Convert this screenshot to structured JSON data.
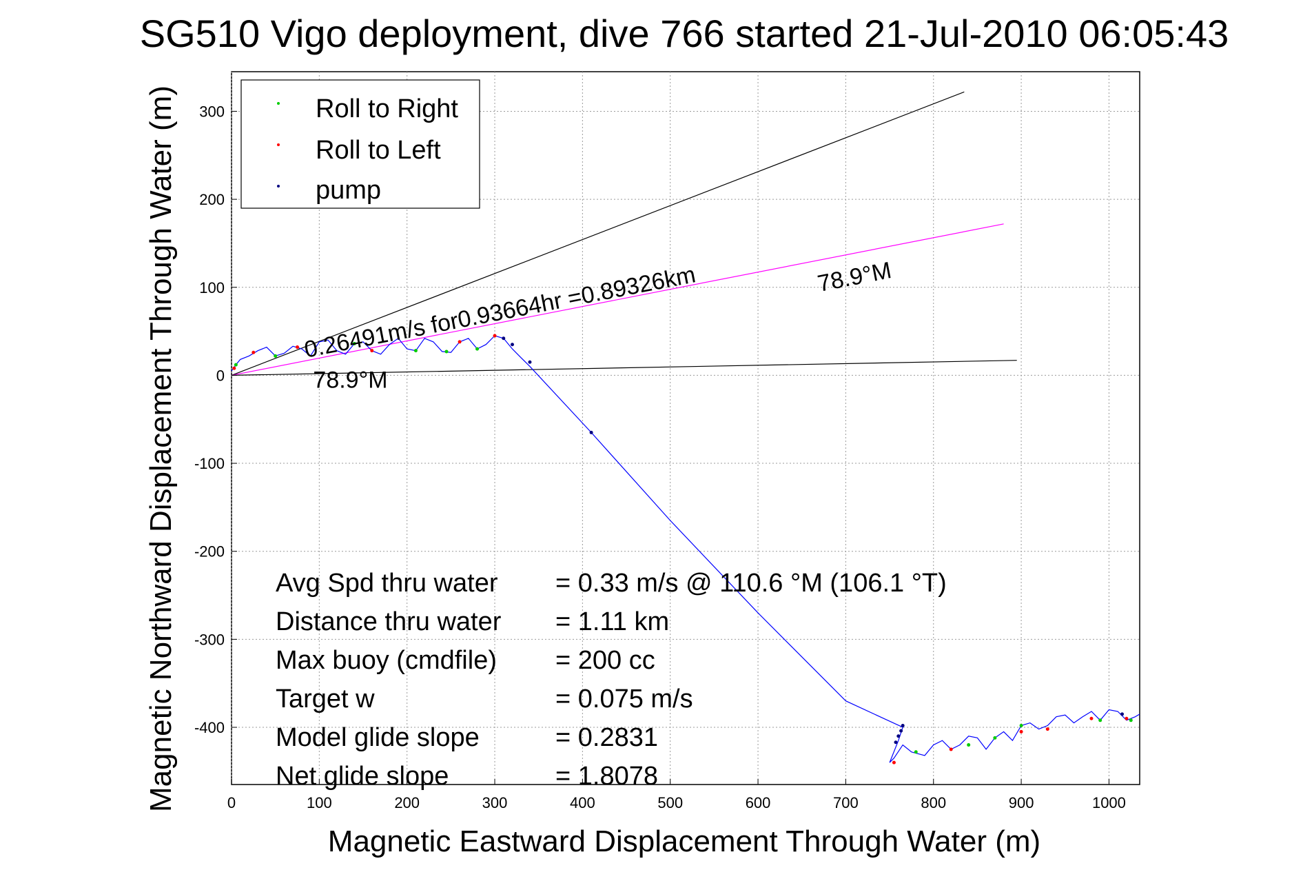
{
  "chart_data": {
    "type": "scatter",
    "title": "SG510 Vigo deployment, dive 766 started 21-Jul-2010 06:05:43",
    "xlabel": "Magnetic Eastward Displacement Through Water (m)",
    "ylabel": "Magnetic Northward Displacement Through Water (m)",
    "xlim": [
      0,
      1035
    ],
    "ylim": [
      -465,
      345
    ],
    "xticks": [
      0,
      100,
      200,
      300,
      400,
      500,
      600,
      700,
      800,
      900,
      1000
    ],
    "yticks": [
      -400,
      -300,
      -200,
      -100,
      0,
      100,
      200,
      300
    ],
    "xtick_labels": [
      "0",
      "100",
      "200",
      "300",
      "400",
      "500",
      "600",
      "700",
      "800",
      "900",
      "1000"
    ],
    "ytick_labels": [
      "-400",
      "-300",
      "-200",
      "-100",
      "0",
      "100",
      "200",
      "300"
    ],
    "grid": true,
    "legend_position": "top-left",
    "legend": [
      {
        "label": "Roll to Right",
        "color": "#00cc00"
      },
      {
        "label": "Roll to Left",
        "color": "#ff0000"
      },
      {
        "label": "pump",
        "color": "#000080"
      }
    ],
    "track": {
      "name": "dive track",
      "color": "#0000ff",
      "x": [
        0,
        5,
        10,
        20,
        30,
        40,
        50,
        60,
        70,
        80,
        90,
        100,
        110,
        120,
        130,
        140,
        150,
        160,
        170,
        180,
        190,
        200,
        210,
        220,
        230,
        240,
        250,
        260,
        270,
        280,
        290,
        300,
        310,
        320,
        330,
        340,
        410,
        500,
        600,
        700,
        765,
        760,
        750,
        755,
        765,
        775,
        790,
        800,
        810,
        820,
        830,
        840,
        850,
        860,
        870,
        880,
        890,
        900,
        910,
        920,
        930,
        940,
        950,
        960,
        970,
        980,
        990,
        1000,
        1010,
        1020,
        1030,
        1035
      ],
      "y": [
        5,
        12,
        18,
        22,
        28,
        32,
        22,
        25,
        33,
        30,
        22,
        38,
        40,
        28,
        24,
        36,
        38,
        28,
        24,
        35,
        42,
        30,
        28,
        42,
        38,
        27,
        26,
        38,
        42,
        30,
        35,
        45,
        42,
        30,
        20,
        10,
        -65,
        -165,
        -270,
        -370,
        -400,
        -415,
        -440,
        -435,
        -420,
        -428,
        -432,
        -420,
        -415,
        -425,
        -420,
        -410,
        -412,
        -425,
        -412,
        -405,
        -415,
        -398,
        -395,
        -402,
        -398,
        -388,
        -386,
        -395,
        -388,
        -382,
        -392,
        -380,
        -382,
        -392,
        -388,
        -385
      ]
    },
    "roll_right_points": {
      "x": [
        5,
        50,
        140,
        210,
        245,
        280,
        780,
        840,
        870,
        900,
        990,
        1025
      ],
      "y": [
        12,
        22,
        36,
        28,
        27,
        30,
        -428,
        -420,
        -412,
        -398,
        -392,
        -392
      ]
    },
    "roll_left_points": {
      "x": [
        3,
        25,
        75,
        160,
        260,
        300,
        755,
        820,
        900,
        930,
        980,
        1020
      ],
      "y": [
        8,
        26,
        32,
        28,
        38,
        45,
        -440,
        -425,
        -405,
        -402,
        -390,
        -390
      ]
    },
    "pump_points": {
      "x": [
        310,
        320,
        340,
        410,
        765,
        763,
        760,
        757,
        1015
      ],
      "y": [
        42,
        35,
        15,
        -65,
        -398,
        -404,
        -410,
        -417,
        -385
      ]
    },
    "lines": [
      {
        "name": "black upper",
        "color": "#000000",
        "x": [
          0,
          835
        ],
        "y": [
          0,
          322
        ]
      },
      {
        "name": "magenta",
        "color": "#ff00ff",
        "x": [
          0,
          880
        ],
        "y": [
          0,
          172
        ]
      },
      {
        "name": "black lower",
        "color": "#000000",
        "x": [
          0,
          895
        ],
        "y": [
          0,
          17
        ]
      }
    ],
    "annotations": [
      {
        "text": "0.26491m/s for0.93664hr =0.89326km",
        "x": 85,
        "y": 20,
        "angle_deg": 11
      },
      {
        "text": "78.9°M",
        "x": 670,
        "y": 95,
        "angle_deg": 11
      },
      {
        "text": "78.9°M",
        "x": 93,
        "y": -14,
        "angle_deg": 0
      }
    ],
    "stats": [
      {
        "label": "Avg Spd thru water",
        "value": "=  0.33 m/s @ 110.6 °M (106.1 °T)"
      },
      {
        "label": "Distance thru water",
        "value": "=  1.11 km"
      },
      {
        "label": "Max buoy (cmdfile)",
        "value": "= 200 cc"
      },
      {
        "label": "Target w",
        "value": "= 0.075 m/s"
      },
      {
        "label": "Model glide slope",
        "value": "= 0.2831"
      },
      {
        "label": "Net glide slope",
        "value": "= 1.8078"
      }
    ]
  }
}
